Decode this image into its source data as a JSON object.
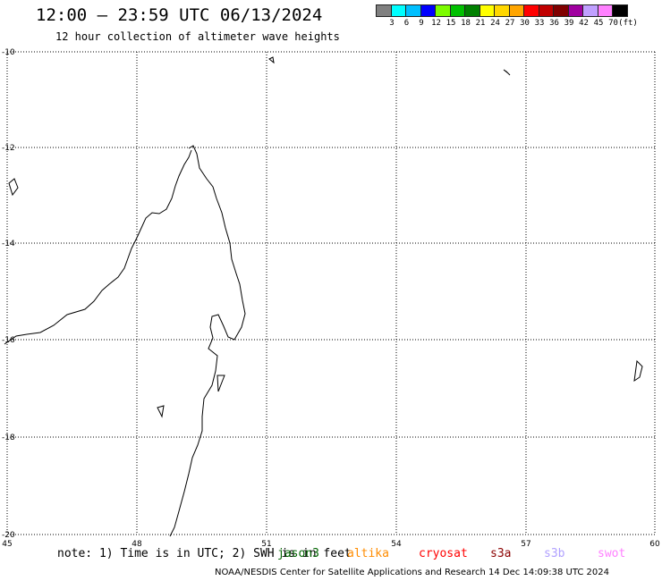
{
  "title": "12:00 — 23:59 UTC 06/13/2024",
  "subtitle": "12 hour collection of altimeter wave heights",
  "legend": {
    "colors": [
      "#808080",
      "#00ffff",
      "#00bfff",
      "#0000ff",
      "#7cfc00",
      "#00c000",
      "#008000",
      "#ffff00",
      "#ffd700",
      "#ffa500",
      "#ff0000",
      "#c00000",
      "#800000",
      "#a000a0",
      "#c0a0ff",
      "#ff80ff",
      "#000000"
    ],
    "labels": [
      "3",
      "6",
      "9",
      "12",
      "15",
      "18",
      "21",
      "24",
      "27",
      "30",
      "33",
      "36",
      "39",
      "42",
      "45",
      "70",
      "(ft)"
    ]
  },
  "map": {
    "lat_labels": [
      "-10",
      "-12",
      "-14",
      "-16",
      "-18",
      "-20"
    ],
    "lon_labels": [
      "45",
      "48",
      "51",
      "54",
      "57",
      "60"
    ],
    "lon_range": [
      45,
      60
    ],
    "lat_range": [
      -20,
      -10
    ]
  },
  "note": "note: 1) Time is in UTC; 2) SWH is in feet",
  "satellites": [
    {
      "name": "jason3",
      "color": "#006400"
    },
    {
      "name": "altika",
      "color": "#ff8c00"
    },
    {
      "name": "cryosat",
      "color": "#ff0000"
    },
    {
      "name": "s3a",
      "color": "#8b0000"
    },
    {
      "name": "s3b",
      "color": "#b0a0ff"
    },
    {
      "name": "swot",
      "color": "#ff80ff"
    }
  ],
  "footer": "NOAA/NESDIS Center for Satellite Applications and Research    14 Dec 14:09:38 UTC 2024"
}
